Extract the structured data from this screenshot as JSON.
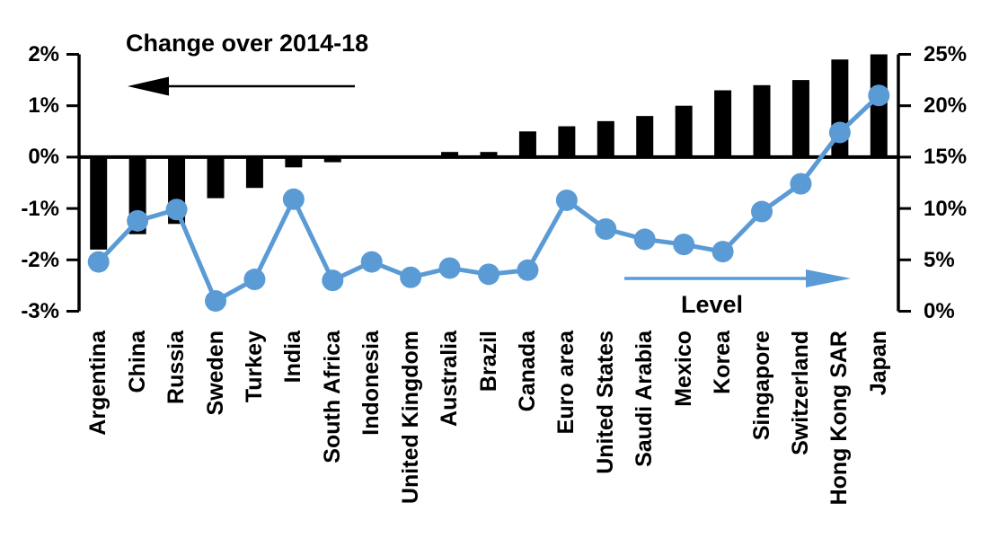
{
  "chart_data": {
    "type": "combo-bar-line-dual-axis",
    "categories": [
      "Argentina",
      "China",
      "Russia",
      "Sweden",
      "Turkey",
      "India",
      "South Africa",
      "Indonesia",
      "United Kingdom",
      "Australia",
      "Brazil",
      "Canada",
      "Euro area",
      "United States",
      "Saudi Arabia",
      "Mexico",
      "Korea",
      "Singapore",
      "Switzerland",
      "Hong Kong SAR",
      "Japan"
    ],
    "series": [
      {
        "name": "Change over 2014-18",
        "type": "bar",
        "axis": "left",
        "color": "#000000",
        "values": [
          -1.8,
          -1.5,
          -1.3,
          -0.8,
          -0.6,
          -0.2,
          -0.1,
          0,
          0,
          0.1,
          0.1,
          0.5,
          0.6,
          0.7,
          0.8,
          1.0,
          1.3,
          1.4,
          1.5,
          1.9,
          2.0
        ]
      },
      {
        "name": "Level",
        "type": "line",
        "axis": "right",
        "color": "#5B9BD5",
        "values": [
          4.8,
          8.8,
          9.9,
          1.0,
          3.1,
          10.9,
          3.0,
          4.8,
          3.3,
          4.2,
          3.6,
          4.0,
          10.8,
          8.0,
          7.0,
          6.5,
          5.8,
          9.7,
          12.4,
          17.4,
          21.0
        ]
      }
    ],
    "left_axis": {
      "min": -3,
      "max": 2,
      "tick_labels": [
        "2%",
        "1%",
        "0%",
        "-1%",
        "-2%",
        "-3%"
      ],
      "tick_values": [
        2,
        1,
        0,
        -1,
        -2,
        -3
      ]
    },
    "right_axis": {
      "min": 0,
      "max": 25,
      "tick_labels": [
        "25%",
        "20%",
        "15%",
        "10%",
        "5%",
        "0%"
      ],
      "tick_values": [
        25,
        20,
        15,
        10,
        5,
        0
      ]
    },
    "annotations": {
      "left_arrow_direction": "left",
      "right_arrow_direction": "right"
    },
    "grid": false,
    "legend": "arrows-with-labels"
  },
  "colors": {
    "bar": "#000000",
    "line": "#5B9BD5",
    "axis": "#000000",
    "text": "#000000",
    "background": "#FFFFFF"
  }
}
